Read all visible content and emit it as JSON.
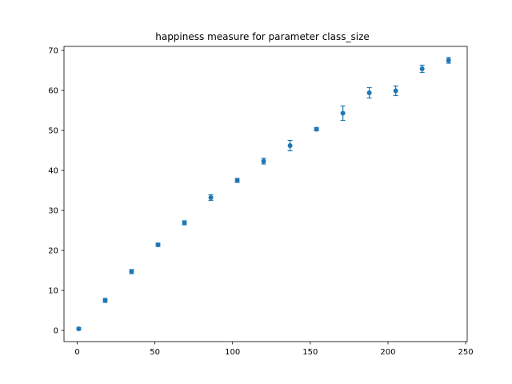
{
  "chart_data": {
    "type": "scatter",
    "title": "happiness measure for parameter class_size",
    "xlabel": "",
    "ylabel": "",
    "xlim": [
      -8.5,
      251
    ],
    "ylim": [
      -2.8,
      71
    ],
    "x_ticks": [
      0,
      50,
      100,
      150,
      200,
      250
    ],
    "y_ticks": [
      0,
      10,
      20,
      30,
      40,
      50,
      60,
      70
    ],
    "grid": false,
    "marker_color": "#1f77b4",
    "points": [
      {
        "x": 1,
        "y": 0.4,
        "err": 0.3
      },
      {
        "x": 18,
        "y": 7.5,
        "err": 0.5
      },
      {
        "x": 35,
        "y": 14.7,
        "err": 0.5
      },
      {
        "x": 52,
        "y": 21.4,
        "err": 0.4
      },
      {
        "x": 69,
        "y": 26.9,
        "err": 0.5
      },
      {
        "x": 86,
        "y": 33.2,
        "err": 0.7
      },
      {
        "x": 103,
        "y": 37.5,
        "err": 0.5
      },
      {
        "x": 120,
        "y": 42.3,
        "err": 0.7
      },
      {
        "x": 137,
        "y": 46.2,
        "err": 1.3
      },
      {
        "x": 154,
        "y": 50.3,
        "err": 0.4
      },
      {
        "x": 171,
        "y": 54.3,
        "err": 1.8
      },
      {
        "x": 188,
        "y": 59.4,
        "err": 1.3
      },
      {
        "x": 205,
        "y": 59.9,
        "err": 1.2
      },
      {
        "x": 222,
        "y": 65.4,
        "err": 0.9
      },
      {
        "x": 239,
        "y": 67.5,
        "err": 0.7
      }
    ]
  }
}
